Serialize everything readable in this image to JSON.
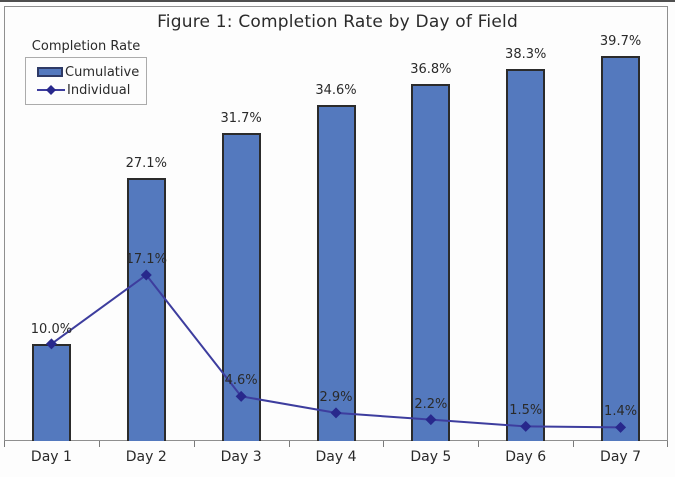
{
  "title": "Figure 1: Completion Rate by Day of Field",
  "legend": {
    "title": "Completion Rate",
    "items": [
      {
        "label": "Cumulative",
        "swatch": "bar"
      },
      {
        "label": "Individual",
        "swatch": "line-diamond"
      }
    ]
  },
  "colors": {
    "bar_fill": "#5479be",
    "bar_border": "#2b2b2b",
    "line": "#3d3d9e",
    "marker": "#28288c",
    "text": "#2a2a2a",
    "frame_border": "#8f8f8f",
    "top_rule": "#4f4f4f"
  },
  "chart_data": {
    "type": "bar",
    "subtype": "bar-plus-line-combo",
    "title": "Figure 1: Completion Rate by Day of Field",
    "categories": [
      "Day 1",
      "Day 2",
      "Day 3",
      "Day 4",
      "Day 5",
      "Day 6",
      "Day 7"
    ],
    "series": [
      {
        "name": "Cumulative",
        "type": "bar",
        "values": [
          10.0,
          27.1,
          31.7,
          34.6,
          36.8,
          38.3,
          39.7
        ],
        "labels": [
          "10.0%",
          "27.1%",
          "31.7%",
          "34.6%",
          "36.8%",
          "38.3%",
          "39.7%"
        ]
      },
      {
        "name": "Individual",
        "type": "line",
        "marker": "diamond",
        "values": [
          10.0,
          17.1,
          4.6,
          2.9,
          2.2,
          1.5,
          1.4
        ],
        "labels": [
          null,
          "17.1%",
          "4.6%",
          "2.9%",
          "2.2%",
          "1.5%",
          "1.4%"
        ]
      }
    ],
    "xlabel": "",
    "ylabel": "",
    "ylim": [
      0,
      44.8
    ],
    "y_axis_visible": false,
    "grid": false,
    "value_format": "percent",
    "legend_position": "top-left"
  }
}
